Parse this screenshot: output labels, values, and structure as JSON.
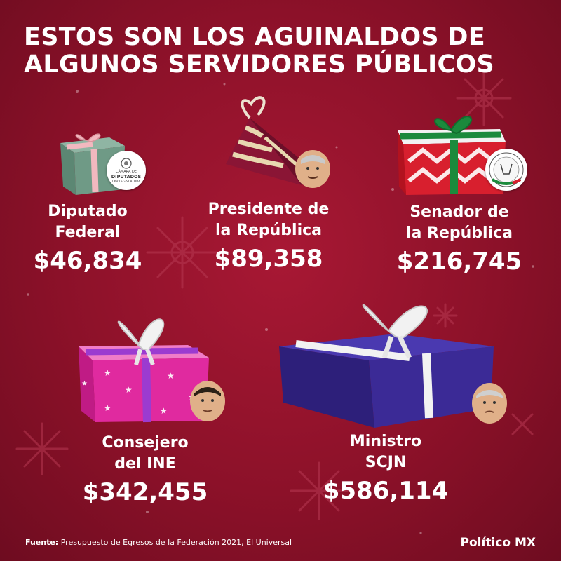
{
  "title": {
    "line1": "ESTOS SON LOS AGUINALDOS DE",
    "line2": "ALGUNOS SERVIDORES PÚBLICOS"
  },
  "chart_data": {
    "type": "table",
    "items": [
      {
        "name_line1": "Diputado",
        "name_line2": "Federal",
        "amount_label": "$46,834",
        "value": 46834,
        "gift_color": "#6f9a86",
        "bow_color": "#f2b8bf"
      },
      {
        "name_line1": "Presidente de",
        "name_line2": "la República",
        "amount_label": "$89,358",
        "value": 89358,
        "gift_color": "#8a1535",
        "bow_color": "#e8d8b0"
      },
      {
        "name_line1": "Senador de",
        "name_line2": "la República",
        "amount_label": "$216,745",
        "value": 216745,
        "gift_color": "#d81f2e",
        "bow_color": "#1b8a3c"
      },
      {
        "name_line1": "Consejero",
        "name_line2": "del INE",
        "amount_label": "$342,455",
        "value": 342455,
        "gift_color": "#e02a9f",
        "bow_color": "#f2f2f2"
      },
      {
        "name_line1": "Ministro",
        "name_line2": "SCJN",
        "amount_label": "$586,114",
        "value": 586114,
        "gift_color": "#3b2a96",
        "bow_color": "#f2f2f2"
      }
    ]
  },
  "seals": {
    "camara_line1": "CÁMARA DE",
    "camara_line2": "DIPUTADOS",
    "camara_line3": "LXV LEGISLATURA"
  },
  "footer": {
    "source_label": "Fuente:",
    "source_text": "Presupuesto de Egresos de la Federación 2021, El Universal"
  },
  "brand": "Político MX"
}
